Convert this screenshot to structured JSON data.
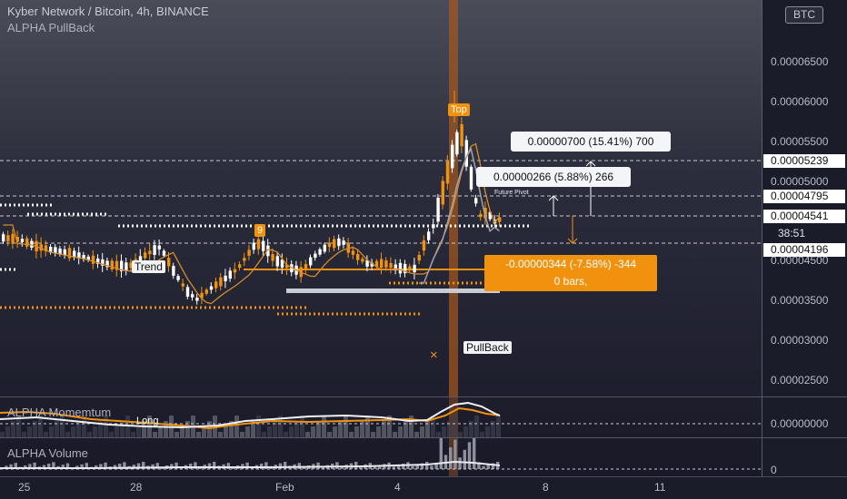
{
  "header": {
    "title": "Kyber Network / Bitcoin, 4h, BINANCE",
    "indicator": "ALPHA PullBack",
    "currency_button": "BTC"
  },
  "price_axis": {
    "labels": [
      "0.00006500",
      "0.00006000",
      "0.00005500",
      "0.00005000",
      "0.00004500",
      "0.00003500",
      "0.00003000",
      "0.00002500"
    ],
    "tags": {
      "top": "0.00005239",
      "upper": "0.00004795",
      "current": "0.00004541",
      "lower": "0.00004196"
    },
    "timer": "38:51"
  },
  "annotations": {
    "measure_up_1": "0.00000700 (15.41%) 700",
    "measure_up_2": "0.00000266 (5.88%) 266",
    "measure_down": "-0.00000344 (-7.58%) -344",
    "measure_down_bars": "0 bars,",
    "future_pivot": "Future Pivot",
    "top_label": "Top",
    "trend_label": "Trend",
    "count_label": "9",
    "pullback_label": "PullBack",
    "long_label": "Long",
    "cross_mark": "×"
  },
  "panes": {
    "momentum": {
      "label": "ALPHA Momemtum",
      "value": "0.00000000"
    },
    "volume": {
      "label": "ALPHA Volume",
      "value": "0"
    }
  },
  "time_axis": {
    "labels": [
      "25",
      "28",
      "Feb",
      "4",
      "8",
      "11"
    ]
  },
  "colors": {
    "accent": "#f0920e",
    "candle_up": "#ffffff",
    "candle_down": "#f0920e",
    "background": "#1b1c2a"
  }
}
